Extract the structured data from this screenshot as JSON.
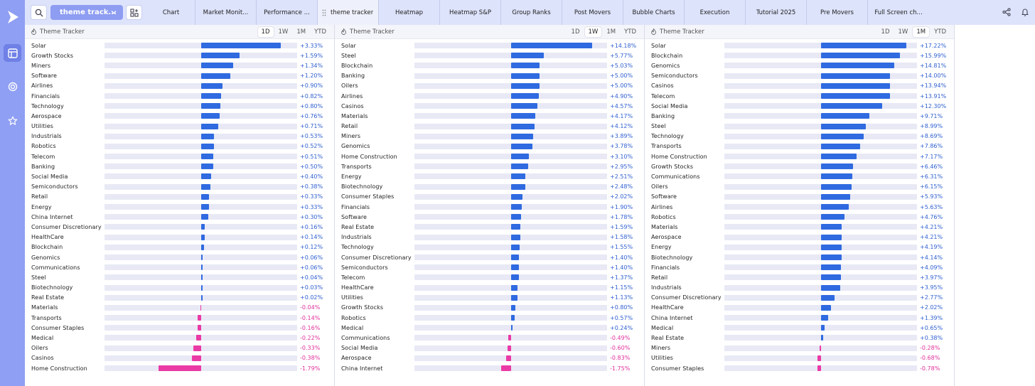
{
  "colors": {
    "positive": "#2f6ae0",
    "negative": "#ea3aa5",
    "sidebar": "#8f9ff3",
    "topbar": "#dde3fb"
  },
  "sidebar": {
    "items": [
      {
        "name": "layout-icon",
        "active": true
      },
      {
        "name": "target-icon",
        "active": false
      },
      {
        "name": "star-icon",
        "active": false
      }
    ]
  },
  "topbar": {
    "selector_label": "theme track...",
    "tabs": [
      {
        "label": "Chart",
        "active": false
      },
      {
        "label": "Market Monit...",
        "active": false
      },
      {
        "label": "Performance ...",
        "active": false
      },
      {
        "label": "theme tracker",
        "active": true
      },
      {
        "label": "Heatmap",
        "active": false
      },
      {
        "label": "Heatmap S&P",
        "active": false
      },
      {
        "label": "Group Ranks",
        "active": false
      },
      {
        "label": "Post Movers",
        "active": false
      },
      {
        "label": "Bubble Charts",
        "active": false
      },
      {
        "label": "Execution",
        "active": false
      },
      {
        "label": "Tutorial 2025",
        "active": false
      },
      {
        "label": "Pre Movers",
        "active": false
      },
      {
        "label": "Full Screen ch...",
        "active": false
      }
    ]
  },
  "panels": [
    {
      "title": "Theme Tracker",
      "periods": [
        "1D",
        "1W",
        "1M",
        "YTD"
      ],
      "active_period": "1D",
      "scale_max": 4.0,
      "rows": [
        {
          "label": "Solar",
          "value": 3.33,
          "display": "+3.33%"
        },
        {
          "label": "Growth Stocks",
          "value": 1.59,
          "display": "+1.59%"
        },
        {
          "label": "Miners",
          "value": 1.34,
          "display": "+1.34%"
        },
        {
          "label": "Software",
          "value": 1.2,
          "display": "+1.20%"
        },
        {
          "label": "Airlines",
          "value": 0.9,
          "display": "+0.90%"
        },
        {
          "label": "Financials",
          "value": 0.82,
          "display": "+0.82%"
        },
        {
          "label": "Technology",
          "value": 0.8,
          "display": "+0.80%"
        },
        {
          "label": "Aerospace",
          "value": 0.76,
          "display": "+0.76%"
        },
        {
          "label": "Utilities",
          "value": 0.71,
          "display": "+0.71%"
        },
        {
          "label": "Industrials",
          "value": 0.53,
          "display": "+0.53%"
        },
        {
          "label": "Robotics",
          "value": 0.52,
          "display": "+0.52%"
        },
        {
          "label": "Telecom",
          "value": 0.51,
          "display": "+0.51%"
        },
        {
          "label": "Banking",
          "value": 0.5,
          "display": "+0.50%"
        },
        {
          "label": "Social Media",
          "value": 0.4,
          "display": "+0.40%"
        },
        {
          "label": "Semiconductors",
          "value": 0.38,
          "display": "+0.38%"
        },
        {
          "label": "Retail",
          "value": 0.33,
          "display": "+0.33%"
        },
        {
          "label": "Energy",
          "value": 0.33,
          "display": "+0.33%"
        },
        {
          "label": "China Internet",
          "value": 0.3,
          "display": "+0.30%"
        },
        {
          "label": "Consumer Discretionary",
          "value": 0.16,
          "display": "+0.16%"
        },
        {
          "label": "HealthCare",
          "value": 0.14,
          "display": "+0.14%"
        },
        {
          "label": "Blockchain",
          "value": 0.12,
          "display": "+0.12%"
        },
        {
          "label": "Genomics",
          "value": 0.06,
          "display": "+0.06%"
        },
        {
          "label": "Communications",
          "value": 0.06,
          "display": "+0.06%"
        },
        {
          "label": "Steel",
          "value": 0.04,
          "display": "+0.04%"
        },
        {
          "label": "Biotechnology",
          "value": 0.03,
          "display": "+0.03%"
        },
        {
          "label": "Real Estate",
          "value": 0.02,
          "display": "+0.02%"
        },
        {
          "label": "Materials",
          "value": -0.04,
          "display": "-0.04%"
        },
        {
          "label": "Transports",
          "value": -0.14,
          "display": "-0.14%"
        },
        {
          "label": "Consumer Staples",
          "value": -0.16,
          "display": "-0.16%"
        },
        {
          "label": "Medical",
          "value": -0.22,
          "display": "-0.22%"
        },
        {
          "label": "Oilers",
          "value": -0.33,
          "display": "-0.33%"
        },
        {
          "label": "Casinos",
          "value": -0.38,
          "display": "-0.38%"
        },
        {
          "label": "Home Construction",
          "value": -1.79,
          "display": "-1.79%"
        }
      ]
    },
    {
      "title": "Theme Tracker",
      "periods": [
        "1D",
        "1W",
        "1M",
        "YTD"
      ],
      "active_period": "1W",
      "scale_max": 16.8,
      "rows": [
        {
          "label": "Solar",
          "value": 14.18,
          "display": "+14.18%"
        },
        {
          "label": "Steel",
          "value": 5.77,
          "display": "+5.77%"
        },
        {
          "label": "Blockchain",
          "value": 5.03,
          "display": "+5.03%"
        },
        {
          "label": "Banking",
          "value": 5.0,
          "display": "+5.00%"
        },
        {
          "label": "Oilers",
          "value": 5.0,
          "display": "+5.00%"
        },
        {
          "label": "Airlines",
          "value": 4.9,
          "display": "+4.90%"
        },
        {
          "label": "Casinos",
          "value": 4.57,
          "display": "+4.57%"
        },
        {
          "label": "Materials",
          "value": 4.17,
          "display": "+4.17%"
        },
        {
          "label": "Retail",
          "value": 4.12,
          "display": "+4.12%"
        },
        {
          "label": "Miners",
          "value": 3.89,
          "display": "+3.89%"
        },
        {
          "label": "Genomics",
          "value": 3.78,
          "display": "+3.78%"
        },
        {
          "label": "Home Construction",
          "value": 3.1,
          "display": "+3.10%"
        },
        {
          "label": "Transports",
          "value": 2.95,
          "display": "+2.95%"
        },
        {
          "label": "Energy",
          "value": 2.51,
          "display": "+2.51%"
        },
        {
          "label": "Biotechnology",
          "value": 2.48,
          "display": "+2.48%"
        },
        {
          "label": "Consumer Staples",
          "value": 2.02,
          "display": "+2.02%"
        },
        {
          "label": "Financials",
          "value": 1.9,
          "display": "+1.90%"
        },
        {
          "label": "Software",
          "value": 1.78,
          "display": "+1.78%"
        },
        {
          "label": "Real Estate",
          "value": 1.59,
          "display": "+1.59%"
        },
        {
          "label": "Industrials",
          "value": 1.58,
          "display": "+1.58%"
        },
        {
          "label": "Technology",
          "value": 1.55,
          "display": "+1.55%"
        },
        {
          "label": "Consumer Discretionary",
          "value": 1.4,
          "display": "+1.40%"
        },
        {
          "label": "Semiconductors",
          "value": 1.4,
          "display": "+1.40%"
        },
        {
          "label": "Telecom",
          "value": 1.37,
          "display": "+1.37%"
        },
        {
          "label": "HealthCare",
          "value": 1.15,
          "display": "+1.15%"
        },
        {
          "label": "Utilities",
          "value": 1.13,
          "display": "+1.13%"
        },
        {
          "label": "Growth Stocks",
          "value": 0.8,
          "display": "+0.80%"
        },
        {
          "label": "Robotics",
          "value": 0.57,
          "display": "+0.57%"
        },
        {
          "label": "Medical",
          "value": 0.24,
          "display": "+0.24%"
        },
        {
          "label": "Communications",
          "value": -0.49,
          "display": "-0.49%"
        },
        {
          "label": "Social Media",
          "value": -0.6,
          "display": "-0.60%"
        },
        {
          "label": "Aerospace",
          "value": -0.83,
          "display": "-0.83%"
        },
        {
          "label": "China Internet",
          "value": -1.75,
          "display": "-1.75%"
        }
      ]
    },
    {
      "title": "Theme Tracker",
      "periods": [
        "1D",
        "1W",
        "1M",
        "YTD"
      ],
      "active_period": "1M",
      "scale_max": 19.4,
      "rows": [
        {
          "label": "Solar",
          "value": 17.22,
          "display": "+17.22%"
        },
        {
          "label": "Blockchain",
          "value": 15.99,
          "display": "+15.99%"
        },
        {
          "label": "Genomics",
          "value": 14.81,
          "display": "+14.81%"
        },
        {
          "label": "Semiconductors",
          "value": 14.0,
          "display": "+14.00%"
        },
        {
          "label": "Casinos",
          "value": 13.94,
          "display": "+13.94%"
        },
        {
          "label": "Telecom",
          "value": 13.91,
          "display": "+13.91%"
        },
        {
          "label": "Social Media",
          "value": 12.3,
          "display": "+12.30%"
        },
        {
          "label": "Banking",
          "value": 9.71,
          "display": "+9.71%"
        },
        {
          "label": "Steel",
          "value": 8.99,
          "display": "+8.99%"
        },
        {
          "label": "Technology",
          "value": 8.69,
          "display": "+8.69%"
        },
        {
          "label": "Transports",
          "value": 7.86,
          "display": "+7.86%"
        },
        {
          "label": "Home Construction",
          "value": 7.17,
          "display": "+7.17%"
        },
        {
          "label": "Growth Stocks",
          "value": 6.46,
          "display": "+6.46%"
        },
        {
          "label": "Communications",
          "value": 6.31,
          "display": "+6.31%"
        },
        {
          "label": "Oilers",
          "value": 6.15,
          "display": "+6.15%"
        },
        {
          "label": "Software",
          "value": 5.93,
          "display": "+5.93%"
        },
        {
          "label": "Airlines",
          "value": 5.63,
          "display": "+5.63%"
        },
        {
          "label": "Robotics",
          "value": 4.76,
          "display": "+4.76%"
        },
        {
          "label": "Materials",
          "value": 4.21,
          "display": "+4.21%"
        },
        {
          "label": "Aerospace",
          "value": 4.21,
          "display": "+4.21%"
        },
        {
          "label": "Energy",
          "value": 4.19,
          "display": "+4.19%"
        },
        {
          "label": "Biotechnology",
          "value": 4.14,
          "display": "+4.14%"
        },
        {
          "label": "Financials",
          "value": 4.09,
          "display": "+4.09%"
        },
        {
          "label": "Retail",
          "value": 3.97,
          "display": "+3.97%"
        },
        {
          "label": "Industrials",
          "value": 3.95,
          "display": "+3.95%"
        },
        {
          "label": "Consumer Discretionary",
          "value": 2.77,
          "display": "+2.77%"
        },
        {
          "label": "HealthCare",
          "value": 2.02,
          "display": "+2.02%"
        },
        {
          "label": "China Internet",
          "value": 1.39,
          "display": "+1.39%"
        },
        {
          "label": "Medical",
          "value": 0.65,
          "display": "+0.65%"
        },
        {
          "label": "Real Estate",
          "value": 0.38,
          "display": "+0.38%"
        },
        {
          "label": "Miners",
          "value": -0.28,
          "display": "-0.28%"
        },
        {
          "label": "Utilities",
          "value": -0.68,
          "display": "-0.68%"
        },
        {
          "label": "Consumer Staples",
          "value": -0.78,
          "display": "-0.78%"
        }
      ]
    }
  ]
}
